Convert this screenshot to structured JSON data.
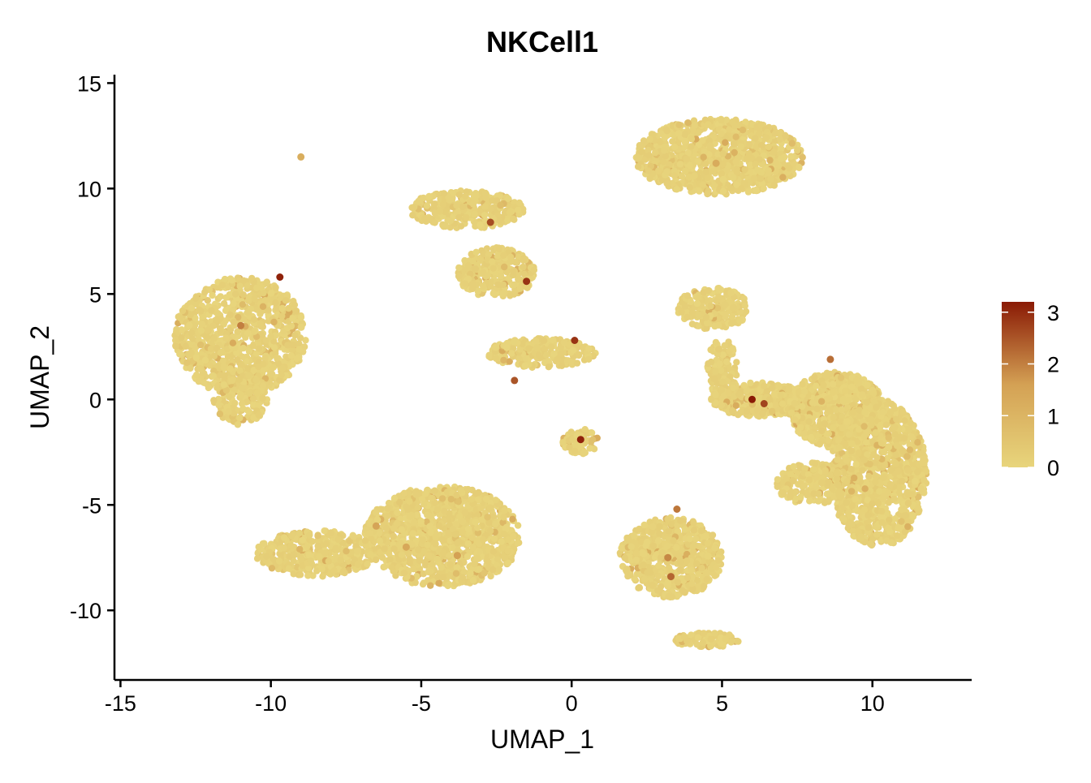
{
  "chart_data": {
    "type": "scatter",
    "title": "NKCell1",
    "xlabel": "UMAP_1",
    "ylabel": "UMAP_2",
    "xlim": [
      -15.2,
      13.3
    ],
    "ylim": [
      -13.3,
      15.4
    ],
    "x_ticks": [
      -15,
      -10,
      -5,
      0,
      5,
      10
    ],
    "x_tick_labels": [
      "-15",
      "-10",
      "-5",
      "0",
      "5",
      "10"
    ],
    "y_ticks": [
      -10,
      -5,
      0,
      5,
      10,
      15
    ],
    "y_tick_labels": [
      "-10",
      "-5",
      "0",
      "5",
      "10",
      "15"
    ],
    "grid": false,
    "legend": {
      "position": "right",
      "kind": "continuous color scale",
      "ticks": [
        0,
        1,
        2,
        3
      ],
      "tick_labels": [
        "0",
        "1",
        "2",
        "3"
      ],
      "min": 0,
      "max": 3.2
    },
    "colors": {
      "low": "#E8D57C",
      "mid": "#D4A154",
      "high": "#8A1A05"
    },
    "clusters": [
      {
        "cx": -11.0,
        "cy": 3.0,
        "rx": 2.2,
        "ry": 2.8,
        "n": 900
      },
      {
        "cx": -11.0,
        "cy": 0.0,
        "rx": 0.9,
        "ry": 1.2,
        "n": 150
      },
      {
        "cx": 4.9,
        "cy": 11.5,
        "rx": 2.8,
        "ry": 1.8,
        "n": 1000
      },
      {
        "cx": -3.5,
        "cy": 9.0,
        "rx": 1.9,
        "ry": 0.9,
        "n": 300
      },
      {
        "cx": -2.5,
        "cy": 6.0,
        "rx": 1.3,
        "ry": 1.2,
        "n": 300
      },
      {
        "cx": -1.0,
        "cy": 2.2,
        "rx": 1.8,
        "ry": 0.7,
        "n": 250
      },
      {
        "cx": 0.3,
        "cy": -2.0,
        "rx": 0.6,
        "ry": 0.6,
        "n": 80
      },
      {
        "cx": -8.5,
        "cy": -7.3,
        "rx": 2.0,
        "ry": 1.1,
        "n": 400
      },
      {
        "cx": -4.3,
        "cy": -6.5,
        "rx": 2.6,
        "ry": 2.4,
        "n": 1200
      },
      {
        "cx": 3.3,
        "cy": -7.5,
        "rx": 1.7,
        "ry": 1.9,
        "n": 600
      },
      {
        "cx": 4.5,
        "cy": -11.4,
        "rx": 1.1,
        "ry": 0.35,
        "n": 100
      },
      {
        "cx": 4.7,
        "cy": 4.3,
        "rx": 1.2,
        "ry": 1.0,
        "n": 200
      },
      {
        "cx": 5.0,
        "cy": 1.5,
        "rx": 0.5,
        "ry": 1.4,
        "n": 100
      },
      {
        "cx": 6.2,
        "cy": 0.0,
        "rx": 1.6,
        "ry": 0.8,
        "n": 400
      },
      {
        "cx": 8.8,
        "cy": -0.5,
        "rx": 1.6,
        "ry": 1.8,
        "n": 700
      },
      {
        "cx": 10.2,
        "cy": -3.5,
        "rx": 1.6,
        "ry": 3.5,
        "n": 1000
      },
      {
        "cx": 8.0,
        "cy": -4.0,
        "rx": 1.2,
        "ry": 1.0,
        "n": 200
      }
    ],
    "highlight_points": [
      {
        "x": -9.7,
        "y": 5.8,
        "v": 3.1
      },
      {
        "x": -11.0,
        "y": 3.5,
        "v": 2.0
      },
      {
        "x": -2.7,
        "y": 8.4,
        "v": 2.6
      },
      {
        "x": -1.5,
        "y": 5.6,
        "v": 2.9
      },
      {
        "x": 0.1,
        "y": 2.8,
        "v": 2.9
      },
      {
        "x": -1.9,
        "y": 0.9,
        "v": 2.5
      },
      {
        "x": 0.3,
        "y": -1.9,
        "v": 3.1
      },
      {
        "x": 6.0,
        "y": 0.0,
        "v": 3.2
      },
      {
        "x": 6.4,
        "y": -0.2,
        "v": 2.7
      },
      {
        "x": 8.6,
        "y": 1.9,
        "v": 2.2
      },
      {
        "x": 3.5,
        "y": -5.2,
        "v": 2.1
      },
      {
        "x": 3.3,
        "y": -8.4,
        "v": 2.3
      },
      {
        "x": 3.2,
        "y": -7.5,
        "v": 1.9
      },
      {
        "x": -6.5,
        "y": -6.0,
        "v": 1.5
      },
      {
        "x": -9.0,
        "y": 11.5,
        "v": 1.2
      },
      {
        "x": 4.8,
        "y": 11.2,
        "v": 1.3
      },
      {
        "x": -5.5,
        "y": -7.0,
        "v": 1.4
      },
      {
        "x": -3.8,
        "y": -7.4,
        "v": 1.6
      }
    ]
  }
}
